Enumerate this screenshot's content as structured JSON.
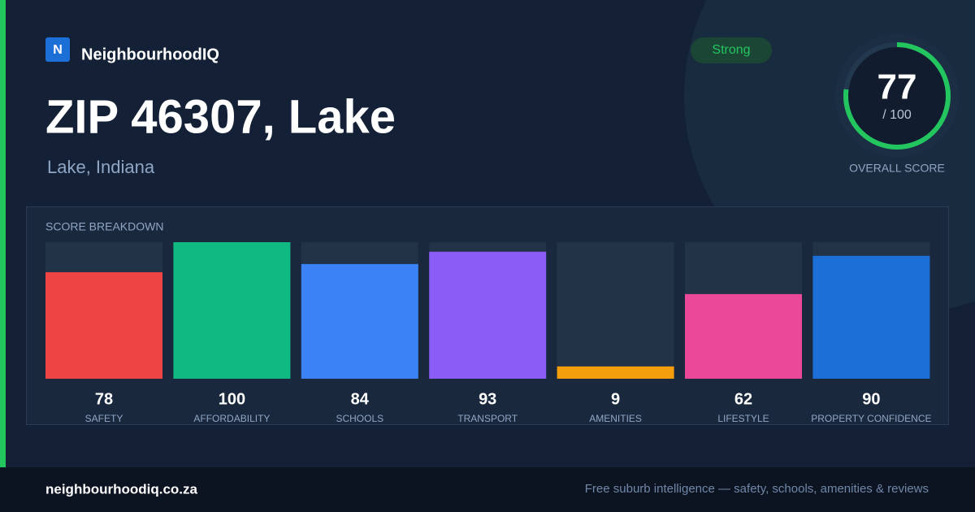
{
  "brand": {
    "icon": "N",
    "name": "NeighbourhoodIQ"
  },
  "header": {
    "title": "ZIP 46307, Lake",
    "subtitle": "Lake, Indiana",
    "badge": "Strong"
  },
  "score": {
    "value": 77,
    "max": {
      "value": 100,
      "label": "/ 100"
    },
    "label": "OVERALL SCORE",
    "color": "#22c55e"
  },
  "breakdown": {
    "title": "SCORE BREAKDOWN",
    "ylim": [
      0,
      100
    ],
    "categories": [
      "SAFETY",
      "AFFORDABILITY",
      "SCHOOLS",
      "TRANSPORT",
      "AMENITIES",
      "LIFESTYLE",
      "PROPERTY CONFIDENCE"
    ],
    "values": [
      78,
      100,
      84,
      93,
      9,
      62,
      90
    ],
    "colors": [
      "#ef4444",
      "#10b981",
      "#3b82f6",
      "#8b5cf6",
      "#f59e0b",
      "#ec4899",
      "#1d6fd8"
    ]
  },
  "footer": {
    "site": "neighbourhoodiq.co.za",
    "tagline": "Free suburb intelligence — safety, schools, amenities & reviews"
  }
}
